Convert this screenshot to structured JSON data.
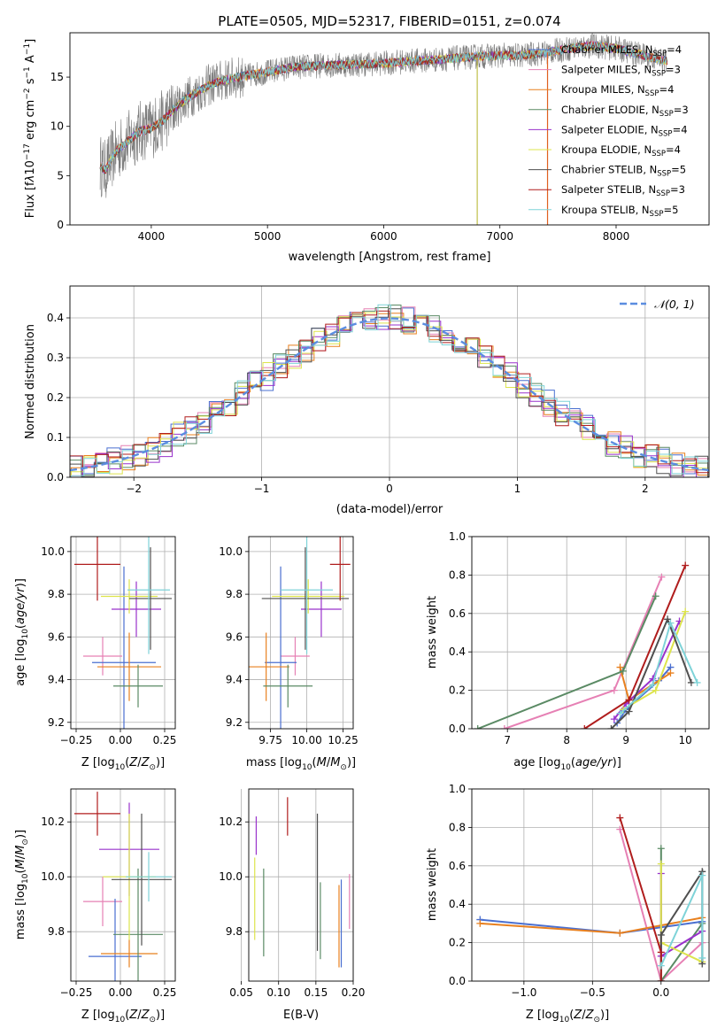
{
  "chart_data": [
    {
      "type": "line",
      "title": "PLATE=0505, MJD=52317, FIBERID=0151, z=0.074",
      "xlabel": "wavelength [Angstrom, rest frame]",
      "ylabel": "Flux [f_λ 10^-17 erg cm^-2 s^-1 A^-1]",
      "xlim": [
        3300,
        8800
      ],
      "ylim": [
        0,
        19.5
      ],
      "xticks": [
        "4000",
        "5000",
        "6000",
        "7000",
        "8000"
      ],
      "yticks": [
        "0",
        "5",
        "10",
        "15"
      ],
      "legend_position": "right",
      "continuum_x": [
        3550,
        3600,
        3700,
        3800,
        3900,
        4000,
        4100,
        4200,
        4300,
        4400,
        4500,
        4600,
        4800,
        5000,
        5200,
        5500,
        5800,
        6000,
        6200,
        6500,
        6800,
        7000,
        7200,
        7400,
        7600,
        7800,
        8000,
        8200,
        8400,
        8600,
        8800
      ],
      "continuum_y": [
        6.3,
        5.5,
        7.5,
        8.5,
        9.5,
        9.8,
        10.6,
        11.8,
        12.8,
        13.5,
        14.2,
        14.6,
        15.1,
        15.5,
        16.0,
        16.2,
        16.3,
        16.4,
        16.6,
        16.8,
        17.1,
        17.2,
        17.2,
        17.5,
        17.9,
        18.2,
        17.9,
        17.3,
        16.7,
        16.2,
        15.8
      ],
      "series": [
        {
          "name": "Chabrier MILES, N_SSP=4",
          "name_main": "Chabrier MILES, N",
          "name_sub": "SSP",
          "name_tail": "=4",
          "color": "#4a6fd0"
        },
        {
          "name": "Salpeter MILES, N_SSP=3",
          "name_main": "Salpeter MILES, N",
          "name_sub": "SSP",
          "name_tail": "=3",
          "color": "#e680b4"
        },
        {
          "name": "Kroupa MILES, N_SSP=4",
          "name_main": "Kroupa MILES, N",
          "name_sub": "SSP",
          "name_tail": "=4",
          "color": "#e8801f"
        },
        {
          "name": "Chabrier ELODIE, N_SSP=3",
          "name_main": "Chabrier ELODIE, N",
          "name_sub": "SSP",
          "name_tail": "=3",
          "color": "#5a8a64"
        },
        {
          "name": "Salpeter ELODIE, N_SSP=4",
          "name_main": "Salpeter ELODIE, N",
          "name_sub": "SSP",
          "name_tail": "=4",
          "color": "#9932cc"
        },
        {
          "name": "Kroupa ELODIE, N_SSP=4",
          "name_main": "Kroupa ELODIE, N",
          "name_sub": "SSP",
          "name_tail": "=4",
          "color": "#dde44c"
        },
        {
          "name": "Chabrier STELIB, N_SSP=5",
          "name_main": "Chabrier STELIB, N",
          "name_sub": "SSP",
          "name_tail": "=5",
          "color": "#4f4f4f"
        },
        {
          "name": "Salpeter STELIB, N_SSP=3",
          "name_main": "Salpeter STELIB, N",
          "name_sub": "SSP",
          "name_tail": "=3",
          "color": "#b01d1d"
        },
        {
          "name": "Kroupa STELIB, N_SSP=5",
          "name_main": "Kroupa STELIB, N",
          "name_sub": "SSP",
          "name_tail": "=5",
          "color": "#7ed3d8"
        }
      ]
    },
    {
      "type": "line",
      "xlabel": "(data-model)/error",
      "ylabel": "Normed distribution",
      "xlim": [
        -2.5,
        2.5
      ],
      "ylim": [
        0,
        0.48
      ],
      "xticks": [
        "−2",
        "−1",
        "0",
        "1",
        "2"
      ],
      "yticks": [
        "0.0",
        "0.1",
        "0.2",
        "0.3",
        "0.4"
      ],
      "grid": true,
      "legend_position": "top-right",
      "reference_curve": {
        "name": "𝒩(0, 1)",
        "mean": 0,
        "sigma": 1,
        "color": "#5b8de0"
      }
    },
    {
      "type": "scatter",
      "xlabel": "Z [log10(Z/Z☉)]",
      "ylabel": "age [log10(age/yr)]",
      "xlim": [
        -0.28,
        0.31
      ],
      "ylim": [
        9.17,
        10.07
      ],
      "xticks": [
        "−0.25",
        "0.00",
        "0.25"
      ],
      "yticks": [
        "9.2",
        "9.4",
        "9.6",
        "9.8",
        "10.0"
      ],
      "points": [
        {
          "x": -0.1,
          "y": 9.51,
          "xerr": 0.11,
          "yerr": 0.09,
          "color": "#e680b4"
        },
        {
          "x": 0.02,
          "y": 9.48,
          "xerr": 0.18,
          "yerr": 0.45,
          "color": "#4a6fd0"
        },
        {
          "x": 0.05,
          "y": 9.46,
          "xerr": 0.18,
          "yerr": 0.16,
          "color": "#e8801f"
        },
        {
          "x": 0.1,
          "y": 9.37,
          "xerr": 0.14,
          "yerr": 0.1,
          "color": "#5a8a64"
        },
        {
          "x": 0.09,
          "y": 9.73,
          "xerr": 0.14,
          "yerr": 0.13,
          "color": "#9932cc"
        },
        {
          "x": 0.05,
          "y": 9.79,
          "xerr": 0.16,
          "yerr": 0.08,
          "color": "#dde44c"
        },
        {
          "x": 0.17,
          "y": 9.78,
          "xerr": 0.12,
          "yerr": 0.24,
          "color": "#4f4f4f"
        },
        {
          "x": -0.13,
          "y": 9.94,
          "xerr": 0.13,
          "yerr": 0.17,
          "color": "#b01d1d"
        },
        {
          "x": 0.16,
          "y": 9.82,
          "xerr": 0.12,
          "yerr": 0.3,
          "color": "#7ed3d8"
        }
      ]
    },
    {
      "type": "scatter",
      "xlabel": "mass [log10(M/M☉)]",
      "xlim": [
        9.6,
        10.32
      ],
      "ylim": [
        9.17,
        10.07
      ],
      "xticks": [
        "9.75",
        "10.00",
        "10.25"
      ],
      "yticks": [
        "9.2",
        "9.4",
        "9.6",
        "9.8",
        "10.0"
      ],
      "points": [
        {
          "x": 9.92,
          "y": 9.51,
          "xerr": 0.1,
          "yerr": 0.09,
          "color": "#e680b4"
        },
        {
          "x": 9.82,
          "y": 9.48,
          "xerr": 0.11,
          "yerr": 0.45,
          "color": "#4a6fd0"
        },
        {
          "x": 9.72,
          "y": 9.46,
          "xerr": 0.16,
          "yerr": 0.16,
          "color": "#e8801f"
        },
        {
          "x": 9.87,
          "y": 9.37,
          "xerr": 0.17,
          "yerr": 0.1,
          "color": "#5a8a64"
        },
        {
          "x": 10.1,
          "y": 9.73,
          "xerr": 0.14,
          "yerr": 0.13,
          "color": "#9932cc"
        },
        {
          "x": 10.01,
          "y": 9.79,
          "xerr": 0.25,
          "yerr": 0.08,
          "color": "#dde44c"
        },
        {
          "x": 9.99,
          "y": 9.78,
          "xerr": 0.3,
          "yerr": 0.24,
          "color": "#4f4f4f"
        },
        {
          "x": 10.23,
          "y": 9.94,
          "xerr": 0.07,
          "yerr": 0.17,
          "color": "#b01d1d"
        },
        {
          "x": 10.0,
          "y": 9.82,
          "xerr": 0.18,
          "yerr": 0.3,
          "color": "#7ed3d8"
        }
      ]
    },
    {
      "type": "line",
      "xlabel": "age [log10(age/yr)]",
      "ylabel": "mass weight",
      "xlim": [
        6.4,
        10.4
      ],
      "ylim": [
        0,
        1.0
      ],
      "xticks": [
        "7",
        "8",
        "9",
        "10"
      ],
      "yticks": [
        "0.0",
        "0.2",
        "0.4",
        "0.6",
        "0.8",
        "1.0"
      ],
      "grid": true,
      "series": [
        {
          "color": "#4a6fd0",
          "x": [
            8.85,
            9.0,
            9.55,
            9.75
          ],
          "y": [
            0.03,
            0.1,
            0.25,
            0.32
          ]
        },
        {
          "color": "#e680b4",
          "x": [
            6.95,
            8.8,
            9.6
          ],
          "y": [
            0.0,
            0.2,
            0.79
          ]
        },
        {
          "color": "#e8801f",
          "x": [
            8.9,
            9.05,
            9.75
          ],
          "y": [
            0.32,
            0.15,
            0.29
          ]
        },
        {
          "color": "#5a8a64",
          "x": [
            6.5,
            8.95,
            9.5
          ],
          "y": [
            0.0,
            0.3,
            0.69
          ]
        },
        {
          "color": "#9932cc",
          "x": [
            8.8,
            9.0,
            9.45,
            9.9
          ],
          "y": [
            0.05,
            0.13,
            0.26,
            0.56
          ]
        },
        {
          "color": "#dde44c",
          "x": [
            8.95,
            9.5,
            10.0
          ],
          "y": [
            0.1,
            0.2,
            0.61
          ]
        },
        {
          "color": "#4f4f4f",
          "x": [
            8.75,
            9.05,
            9.7,
            10.1
          ],
          "y": [
            0.0,
            0.09,
            0.57,
            0.24
          ]
        },
        {
          "color": "#b01d1d",
          "x": [
            8.3,
            9.05,
            10.0
          ],
          "y": [
            0.0,
            0.15,
            0.85
          ]
        },
        {
          "color": "#7ed3d8",
          "x": [
            8.9,
            9.45,
            9.75,
            10.2
          ],
          "y": [
            0.08,
            0.23,
            0.55,
            0.24
          ]
        }
      ]
    },
    {
      "type": "scatter",
      "xlabel": "Z [log10(Z/Z☉)]",
      "ylabel": "mass [log10(M/M☉)]",
      "xlim": [
        -0.28,
        0.31
      ],
      "ylim": [
        9.62,
        10.32
      ],
      "xticks": [
        "−0.25",
        "0.00",
        "0.25"
      ],
      "yticks": [
        "9.8",
        "10.0",
        "10.2"
      ],
      "points": [
        {
          "x": -0.1,
          "y": 9.91,
          "xerr": 0.11,
          "yerr": 0.09,
          "color": "#e680b4"
        },
        {
          "x": -0.03,
          "y": 9.71,
          "xerr": 0.15,
          "yerr": 0.21,
          "color": "#4a6fd0"
        },
        {
          "x": 0.05,
          "y": 9.72,
          "xerr": 0.16,
          "yerr": 0.05,
          "color": "#e8801f"
        },
        {
          "x": 0.1,
          "y": 9.79,
          "xerr": 0.14,
          "yerr": 0.24,
          "color": "#5a8a64"
        },
        {
          "x": 0.05,
          "y": 10.1,
          "xerr": 0.17,
          "yerr": 0.17,
          "color": "#9932cc"
        },
        {
          "x": 0.05,
          "y": 10.0,
          "xerr": 0.15,
          "yerr": 0.23,
          "color": "#dde44c"
        },
        {
          "x": 0.12,
          "y": 9.99,
          "xerr": 0.17,
          "yerr": 0.24,
          "color": "#4f4f4f"
        },
        {
          "x": -0.13,
          "y": 10.23,
          "xerr": 0.13,
          "yerr": 0.08,
          "color": "#b01d1d"
        },
        {
          "x": 0.16,
          "y": 10.0,
          "xerr": 0.13,
          "yerr": 0.09,
          "color": "#7ed3d8"
        }
      ]
    },
    {
      "type": "scatter",
      "xlabel": "E(B-V)",
      "xlim": [
        0.06,
        0.2
      ],
      "ylim": [
        9.62,
        10.32
      ],
      "xticks": [
        "0.05",
        "0.10",
        "0.15",
        "0.20"
      ],
      "yticks": [
        "9.8",
        "10.0",
        "10.2"
      ],
      "points": [
        {
          "x": 0.07,
          "y": 10.15,
          "yerr": 0.07,
          "color": "#9932cc"
        },
        {
          "x": 0.068,
          "y": 9.92,
          "yerr": 0.15,
          "color": "#dde44c"
        },
        {
          "x": 0.08,
          "y": 9.87,
          "yerr": 0.16,
          "color": "#5a8a64"
        },
        {
          "x": 0.112,
          "y": 10.22,
          "yerr": 0.07,
          "color": "#b01d1d"
        },
        {
          "x": 0.152,
          "y": 9.98,
          "yerr": 0.25,
          "color": "#4f4f4f"
        },
        {
          "x": 0.156,
          "y": 9.84,
          "yerr": 0.14,
          "color": "#5a8a64"
        },
        {
          "x": 0.181,
          "y": 9.82,
          "yerr": 0.15,
          "color": "#e8801f"
        },
        {
          "x": 0.184,
          "y": 9.83,
          "yerr": 0.16,
          "color": "#4a6fd0"
        },
        {
          "x": 0.195,
          "y": 9.91,
          "yerr": 0.1,
          "color": "#e680b4"
        }
      ]
    },
    {
      "type": "line",
      "xlabel": "Z [log10(Z/Z☉)]",
      "ylabel": "mass weight",
      "xlim": [
        -1.38,
        0.35
      ],
      "ylim": [
        0,
        1.0
      ],
      "xticks": [
        "−1.0",
        "−0.5",
        "0.0"
      ],
      "yticks": [
        "0.0",
        "0.2",
        "0.4",
        "0.6",
        "0.8",
        "1.0"
      ],
      "grid": true,
      "series": [
        {
          "color": "#4a6fd0",
          "x": [
            -1.32,
            -0.3,
            0.3
          ],
          "y": [
            0.32,
            0.25,
            0.31
          ]
        },
        {
          "color": "#e680b4",
          "x": [
            -0.3,
            0.0,
            0.3
          ],
          "y": [
            0.79,
            0.0,
            0.2
          ]
        },
        {
          "color": "#e8801f",
          "x": [
            -1.32,
            -0.3,
            0.3
          ],
          "y": [
            0.3,
            0.25,
            0.33
          ]
        },
        {
          "color": "#5a8a64",
          "x": [
            0.0,
            0.0,
            0.3
          ],
          "y": [
            0.69,
            0.0,
            0.3
          ]
        },
        {
          "color": "#9932cc",
          "x": [
            0.0,
            0.0,
            0.3
          ],
          "y": [
            0.56,
            0.13,
            0.26
          ]
        },
        {
          "color": "#dde44c",
          "x": [
            0.0,
            0.0,
            0.3
          ],
          "y": [
            0.61,
            0.2,
            0.1
          ]
        },
        {
          "color": "#4f4f4f",
          "x": [
            0.0,
            0.0,
            0.3,
            0.3
          ],
          "y": [
            0.0,
            0.24,
            0.57,
            0.09
          ]
        },
        {
          "color": "#b01d1d",
          "x": [
            -0.3,
            0.0,
            0.0
          ],
          "y": [
            0.85,
            0.15,
            0.0
          ]
        },
        {
          "color": "#7ed3d8",
          "x": [
            0.0,
            0.3,
            0.3
          ],
          "y": [
            0.08,
            0.55,
            0.12
          ]
        }
      ]
    }
  ]
}
